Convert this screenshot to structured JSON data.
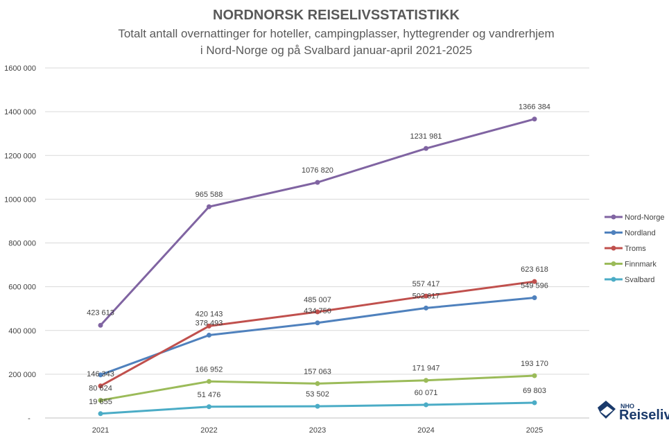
{
  "chart_data": {
    "type": "line",
    "title": "NORDNORSK REISELIVSSTATISTIKK",
    "subtitle_line1": "Totalt antall overnattinger for hoteller, campingplasser, hyttegrender og vandrerhjem",
    "subtitle_line2": "i Nord-Norge og på Svalbard januar-april 2021-2025",
    "x": [
      "2021",
      "2022",
      "2023",
      "2024",
      "2025"
    ],
    "ylim": [
      0,
      1600000
    ],
    "y_ticks": [
      0,
      200000,
      400000,
      600000,
      800000,
      1000000,
      1200000,
      1400000,
      1600000
    ],
    "y_tick_labels": [
      "-",
      "200 000",
      "400 000",
      "600 000",
      "800 000",
      "1000 000",
      "1200 000",
      "1400 000",
      "1600 000"
    ],
    "grid": true,
    "legend_position": "right",
    "series": [
      {
        "name": "Nord-Norge",
        "color": "#8064a2",
        "values": [
          423613,
          965588,
          1076820,
          1231981,
          1366384
        ],
        "labels": [
          "423 613",
          "965 588",
          "1076 820",
          "1231 981",
          "1366 384"
        ]
      },
      {
        "name": "Nordland",
        "color": "#4f81bd",
        "values": [
          197000,
          378493,
          434750,
          502617,
          549596
        ],
        "labels": [
          "",
          "378 493",
          "434 750",
          "502 617",
          "549 596"
        ]
      },
      {
        "name": "Troms",
        "color": "#c0504d",
        "values": [
          146343,
          420143,
          485007,
          557417,
          623618
        ],
        "labels": [
          "146 343",
          "420 143",
          "485 007",
          "557 417",
          "623 618"
        ]
      },
      {
        "name": "Finnmark",
        "color": "#9bbb59",
        "values": [
          80624,
          166952,
          157063,
          171947,
          193170
        ],
        "labels": [
          "80 624",
          "166 952",
          "157 063",
          "171 947",
          "193 170"
        ]
      },
      {
        "name": "Svalbard",
        "color": "#4bacc6",
        "values": [
          19655,
          51476,
          53502,
          60071,
          69803
        ],
        "labels": [
          "19 655",
          "51 476",
          "53 502",
          "60 071",
          "69 803"
        ]
      }
    ]
  },
  "logo": {
    "small": "NHO",
    "big": "Reiseliv",
    "icon": "nho-logo-icon"
  }
}
